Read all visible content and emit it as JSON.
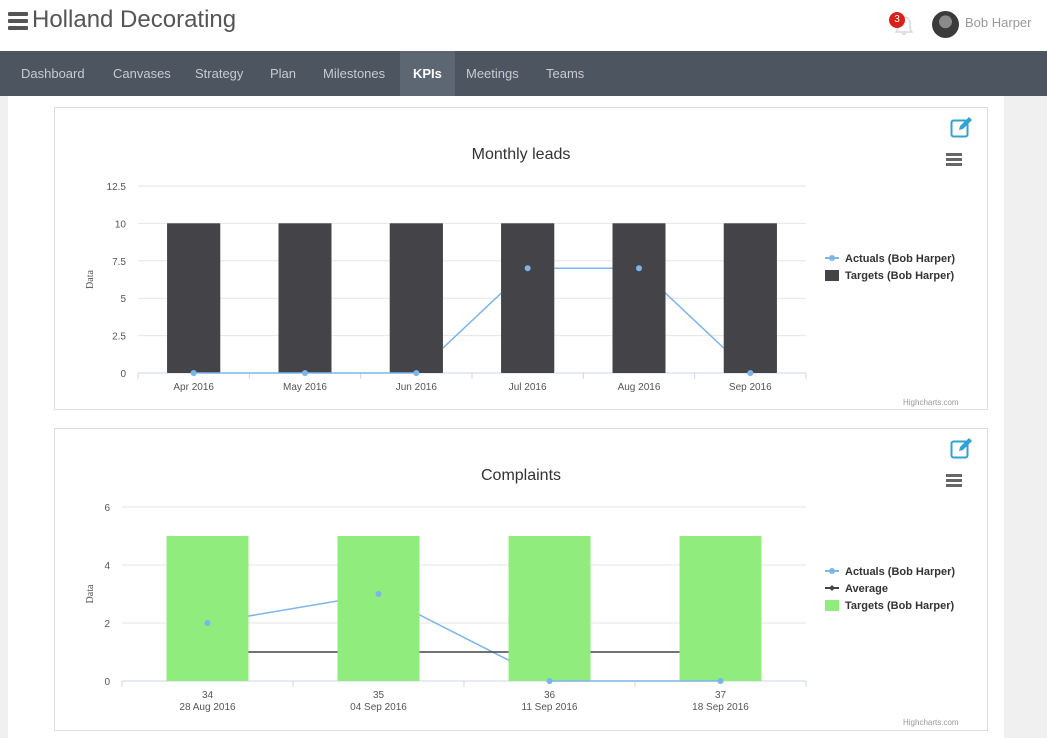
{
  "app": {
    "title": "Holland Decorating"
  },
  "header": {
    "notifications_count": "3",
    "user_name": "Bob Harper",
    "icons": {
      "menu": "hamburger-icon",
      "bell": "bell-icon"
    }
  },
  "nav": {
    "items": [
      "Dashboard",
      "Canvases",
      "Strategy",
      "Plan",
      "Milestones",
      "KPIs",
      "Meetings",
      "Teams"
    ],
    "active": "KPIs"
  },
  "colors": {
    "accent": "#31a2d6",
    "nav_bg": "#4d5561",
    "badge": "#d9201a",
    "target_dark": "#434348",
    "target_green": "#90ed7d",
    "actual_line": "#7cb5ec",
    "average_line": "#434348"
  },
  "charts": [
    {
      "title": "Monthly leads",
      "credit": "Highcharts.com",
      "icons": {
        "edit": "edit-icon",
        "menu": "chart-menu-icon"
      },
      "chart_data": {
        "type": "bar",
        "title": "Monthly leads",
        "xlabel": "",
        "ylabel": "Data",
        "ylim": [
          0,
          12.5
        ],
        "yticks": [
          "0",
          "2.5",
          "5",
          "7.5",
          "10",
          "12.5"
        ],
        "categories": [
          "Apr 2016",
          "May 2016",
          "Jun 2016",
          "Jul 2016",
          "Aug 2016",
          "Sep 2016"
        ],
        "series": [
          {
            "name": "Actuals (Bob Harper)",
            "type": "line",
            "values": [
              0,
              0,
              0,
              7,
              7,
              0
            ]
          },
          {
            "name": "Targets (Bob Harper)",
            "type": "bar",
            "values": [
              10,
              10,
              10,
              10,
              10,
              10
            ]
          }
        ],
        "legend": "right",
        "grid": true
      }
    },
    {
      "title": "Complaints",
      "credit": "Highcharts.com",
      "icons": {
        "edit": "edit-icon",
        "menu": "chart-menu-icon"
      },
      "chart_data": {
        "type": "bar",
        "title": "Complaints",
        "xlabel": "",
        "ylabel": "Data",
        "ylim": [
          0,
          6
        ],
        "yticks": [
          "0",
          "2",
          "4",
          "6"
        ],
        "categories": [
          "34",
          "35",
          "36",
          "37"
        ],
        "category_sublabels": [
          "28 Aug 2016",
          "04 Sep 2016",
          "11 Sep 2016",
          "18 Sep 2016"
        ],
        "series": [
          {
            "name": "Actuals (Bob Harper)",
            "type": "line",
            "values": [
              2,
              3,
              0,
              0
            ]
          },
          {
            "name": "Average",
            "type": "line",
            "values": [
              1,
              1,
              1,
              1
            ]
          },
          {
            "name": "Targets (Bob Harper)",
            "type": "bar",
            "values": [
              5,
              5,
              5,
              5
            ]
          }
        ],
        "legend": "right",
        "grid": true
      }
    }
  ]
}
